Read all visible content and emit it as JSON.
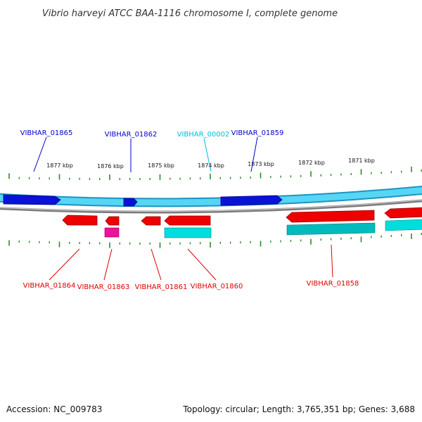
{
  "header": {
    "title": "Vibrio harveyi ATCC BAA-1116 chromosome I, complete genome"
  },
  "footer": {
    "accession": "Accession: NC_009783",
    "topology": "Topology: circular; Length: 3,765,351 bp; Genes: 3,688"
  },
  "scale_labels": [
    "1877 kbp",
    "1876 kbp",
    "1875 kbp",
    "1874 kbp",
    "1873 kbp",
    "1872 kbp",
    "1871 kbp"
  ],
  "genes_top": [
    {
      "name": "VIBHAR_01865",
      "color": "#0000cc"
    },
    {
      "name": "VIBHAR_01862",
      "color": "#0000cc"
    },
    {
      "name": "VIBHAR_00002",
      "color": "#00bbdd"
    },
    {
      "name": "VIBHAR_01859",
      "color": "#0000cc"
    }
  ],
  "genes_bottom": [
    {
      "name": "VIBHAR_01864",
      "color": "#dd0000"
    },
    {
      "name": "VIBHAR_01863",
      "color": "#dd0000"
    },
    {
      "name": "VIBHAR_01861",
      "color": "#dd0000"
    },
    {
      "name": "VIBHAR_01860",
      "color": "#dd0000"
    },
    {
      "name": "VIBHAR_01858",
      "color": "#dd0000"
    }
  ],
  "colors": {
    "forward_gene": "#0000cc",
    "forward_track": "#33ccee",
    "reverse_gene": "#ee0000",
    "reverse_track": "#00cccc",
    "pseudo_gene": "#ee1199",
    "tick": "#2e8b2e",
    "chromosome_line": "#888888"
  }
}
